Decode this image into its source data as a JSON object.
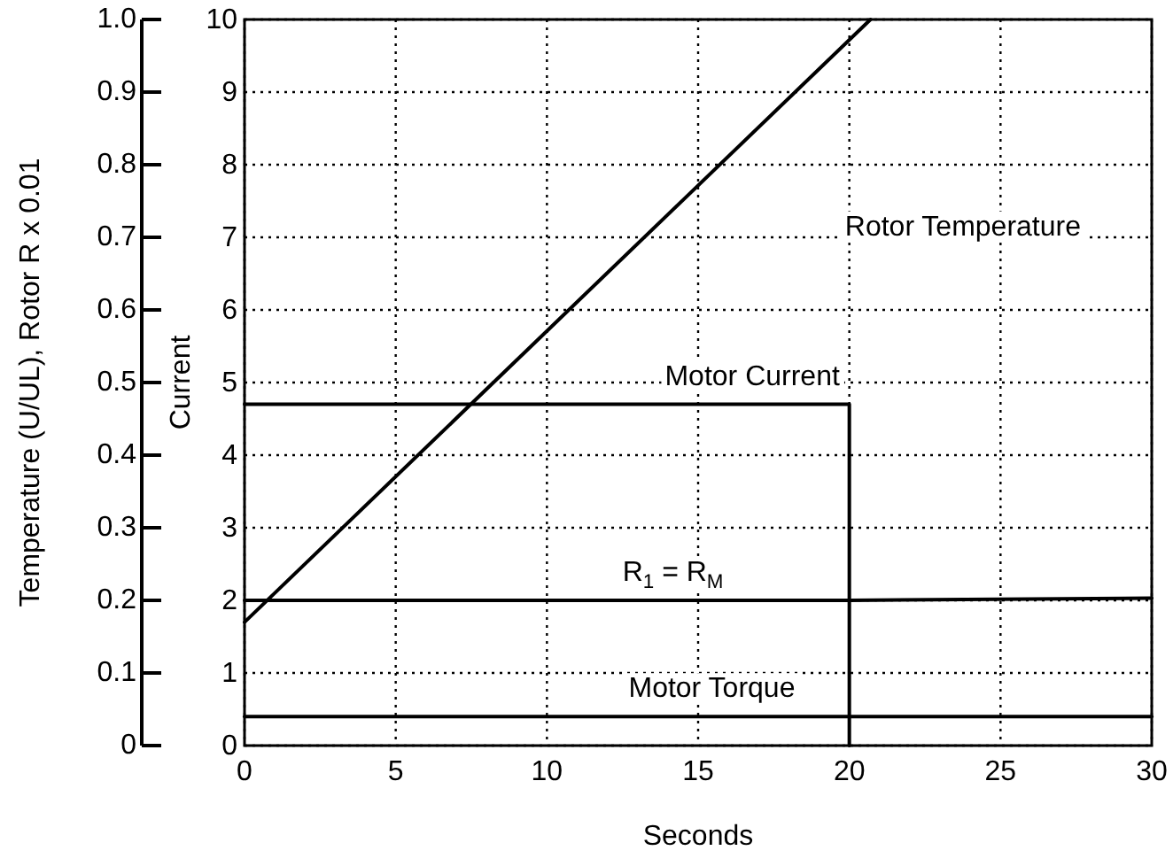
{
  "chart_data": {
    "type": "line",
    "xlabel": "Seconds",
    "ylabel": "Current",
    "y2label": "Temperature (U/UL), Rotor R x 0.01",
    "xlim": [
      0,
      30
    ],
    "xticks": [
      0,
      5,
      10,
      15,
      20,
      25,
      30
    ],
    "ylim": [
      0,
      10
    ],
    "yticks": [
      0,
      1,
      2,
      3,
      4,
      5,
      6,
      7,
      8,
      9,
      10
    ],
    "y2lim": [
      0,
      1
    ],
    "y2ticks": [
      {
        "value": 0,
        "label": "0"
      },
      0.1,
      0.2,
      0.3,
      0.4,
      0.5,
      0.6,
      0.7,
      0.8,
      0.9,
      {
        "value": 1,
        "label": "1.0"
      }
    ],
    "grid": true,
    "line_style": "solid",
    "marker": "none",
    "series": [
      {
        "color": "#000000",
        "x": [
          0,
          20.7
        ],
        "values": [
          1.7,
          10
        ]
      },
      {
        "color": "#000000",
        "x": [
          0,
          20,
          20
        ],
        "values": [
          4.7,
          4.7,
          0
        ]
      },
      {
        "color": "#000000",
        "x": [
          0,
          20,
          30
        ],
        "values": [
          2,
          2,
          2.03
        ]
      },
      {
        "color": "#000000",
        "x": [
          0,
          30
        ],
        "values": [
          0.4,
          0.4
        ]
      }
    ],
    "annotations": [
      "Rotor Temperature",
      {
        "text": "Motor Current",
        "x": 13.9,
        "y": 4.7
      },
      {
        "text": "R$_{1}$ = R$_{M}$",
        "x": 12.5,
        "y": 2
      },
      {
        "text": "Motor Torque",
        "x": 12.7,
        "y": 0.4
      }
    ]
  }
}
